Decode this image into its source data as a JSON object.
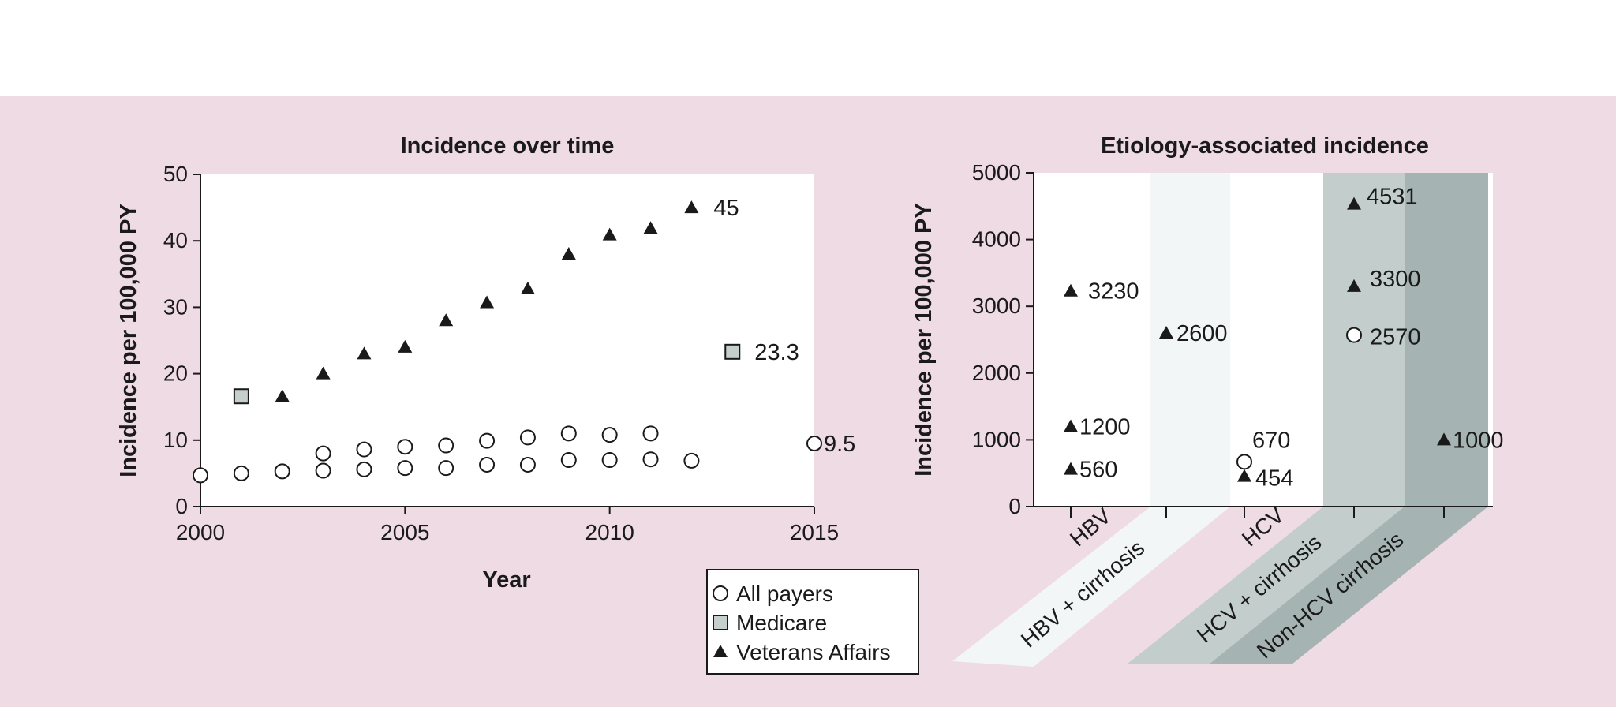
{
  "chart_data": [
    {
      "type": "scatter",
      "title": "Incidence over time",
      "xlabel": "Year",
      "ylabel": "Incidence per 100,000 PY",
      "xlim": [
        2000,
        2015
      ],
      "ylim": [
        0,
        50
      ],
      "xticks": [
        "2000",
        "2005",
        "2010",
        "2015"
      ],
      "yticks": [
        "0",
        "10",
        "20",
        "30",
        "40",
        "50"
      ],
      "grid": false,
      "legend": "bottom-right, outside plot",
      "series": [
        {
          "name": "All payers",
          "marker": "circle",
          "points": [
            [
              2000,
              4.7
            ],
            [
              2001,
              5
            ],
            [
              2002,
              5.3
            ],
            [
              2003,
              5.4
            ],
            [
              2003,
              8
            ],
            [
              2004,
              5.6
            ],
            [
              2004,
              8.6
            ],
            [
              2005,
              5.8
            ],
            [
              2005,
              9
            ],
            [
              2006,
              5.8
            ],
            [
              2006,
              9.2
            ],
            [
              2007,
              6.3
            ],
            [
              2007,
              9.9
            ],
            [
              2008,
              6.3
            ],
            [
              2008,
              10.4
            ],
            [
              2009,
              7
            ],
            [
              2009,
              11
            ],
            [
              2010,
              7
            ],
            [
              2010,
              10.8
            ],
            [
              2011,
              7.1
            ],
            [
              2011,
              11
            ],
            [
              2012,
              6.9
            ],
            [
              2015,
              9.5
            ]
          ]
        },
        {
          "name": "Medicare",
          "marker": "square",
          "color": "#c5cfce",
          "points": [
            [
              2001,
              16.6
            ],
            [
              2013,
              23.3
            ]
          ]
        },
        {
          "name": "Veterans Affairs",
          "marker": "triangle",
          "points": [
            [
              2002,
              16.6
            ],
            [
              2003,
              20
            ],
            [
              2004,
              23
            ],
            [
              2005,
              24
            ],
            [
              2006,
              28
            ],
            [
              2007,
              30.7
            ],
            [
              2008,
              32.8
            ],
            [
              2009,
              38
            ],
            [
              2010,
              40.9
            ],
            [
              2011,
              41.9
            ],
            [
              2012,
              45
            ]
          ]
        }
      ],
      "annotations": [
        {
          "text": "45",
          "x": 2012,
          "y": 45
        },
        {
          "text": "23.3",
          "x": 2013,
          "y": 23.3
        },
        {
          "text": "9.5",
          "x": 2015,
          "y": 9.5
        }
      ]
    },
    {
      "type": "scatter",
      "title": "Etiology-associated incidence",
      "ylabel": "Incidence per 100,000 PY",
      "ylim": [
        0,
        5000
      ],
      "yticks": [
        "0",
        "1000",
        "2000",
        "3000",
        "4000",
        "5000"
      ],
      "categories": [
        "HBV",
        "HBV + cirrhosis",
        "HCV",
        "HCV + cirrhosis",
        "Non-HCV cirrhosis"
      ],
      "band_colors": [
        "#ffffff",
        "#f3f6f6",
        "#ffffff",
        "#c3cdcc",
        "#a5b3b2"
      ],
      "series": [
        {
          "name": "Veterans Affairs",
          "marker": "triangle",
          "points": [
            [
              "HBV",
              3230
            ],
            [
              "HBV",
              1200
            ],
            [
              "HBV",
              560
            ],
            [
              "HBV + cirrhosis",
              2600
            ],
            [
              "HCV",
              454
            ],
            [
              "HCV + cirrhosis",
              4531
            ],
            [
              "HCV + cirrhosis",
              3300
            ],
            [
              "Non-HCV cirrhosis",
              1000
            ]
          ]
        },
        {
          "name": "All payers",
          "marker": "circle",
          "points": [
            [
              "HCV",
              670
            ],
            [
              "HCV + cirrhosis",
              2570
            ]
          ]
        }
      ],
      "labels": [
        {
          "category": "HBV",
          "value": 3230,
          "text": "3230"
        },
        {
          "category": "HBV",
          "value": 1200,
          "text": "1200"
        },
        {
          "category": "HBV",
          "value": 560,
          "text": "560"
        },
        {
          "category": "HBV + cirrhosis",
          "value": 2600,
          "text": "2600"
        },
        {
          "category": "HCV",
          "value": 670,
          "text": "670"
        },
        {
          "category": "HCV",
          "value": 454,
          "text": "454"
        },
        {
          "category": "HCV + cirrhosis",
          "value": 4531,
          "text": "4531"
        },
        {
          "category": "HCV + cirrhosis",
          "value": 3300,
          "text": "3300"
        },
        {
          "category": "HCV + cirrhosis",
          "value": 2570,
          "text": "2570"
        },
        {
          "category": "Non-HCV cirrhosis",
          "value": 1000,
          "text": "1000"
        }
      ]
    }
  ]
}
